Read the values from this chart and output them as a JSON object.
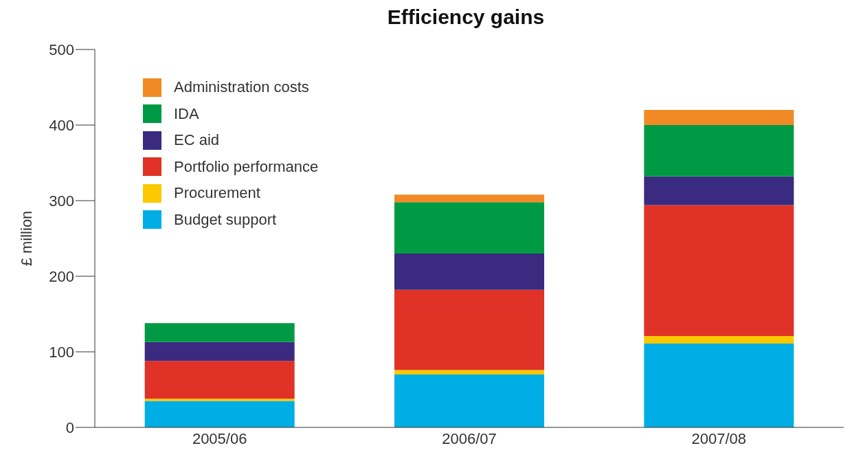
{
  "chart_data": {
    "type": "bar",
    "title": "Efficiency gains",
    "ylabel": "£ million",
    "categories": [
      "2005/06",
      "2006/07",
      "2007/08"
    ],
    "stacked": true,
    "ylim": [
      0,
      500
    ],
    "yticks": [
      0,
      100,
      200,
      300,
      400,
      500
    ],
    "grid": false,
    "legend": "top left",
    "series": [
      {
        "name": "Budget support",
        "color": "#00aee6",
        "values": [
          35,
          70,
          111
        ]
      },
      {
        "name": "Procurement",
        "color": "#fcc800",
        "values": [
          3,
          6,
          10
        ]
      },
      {
        "name": "Portfolio performance",
        "color": "#e03226",
        "values": [
          50,
          106,
          173
        ]
      },
      {
        "name": "EC aid",
        "color": "#3a2a80",
        "values": [
          25,
          48,
          38
        ]
      },
      {
        "name": "IDA",
        "color": "#009a44",
        "values": [
          25,
          68,
          68
        ]
      },
      {
        "name": "Administration costs",
        "color": "#f18a25",
        "values": [
          0,
          10,
          20
        ]
      }
    ]
  }
}
